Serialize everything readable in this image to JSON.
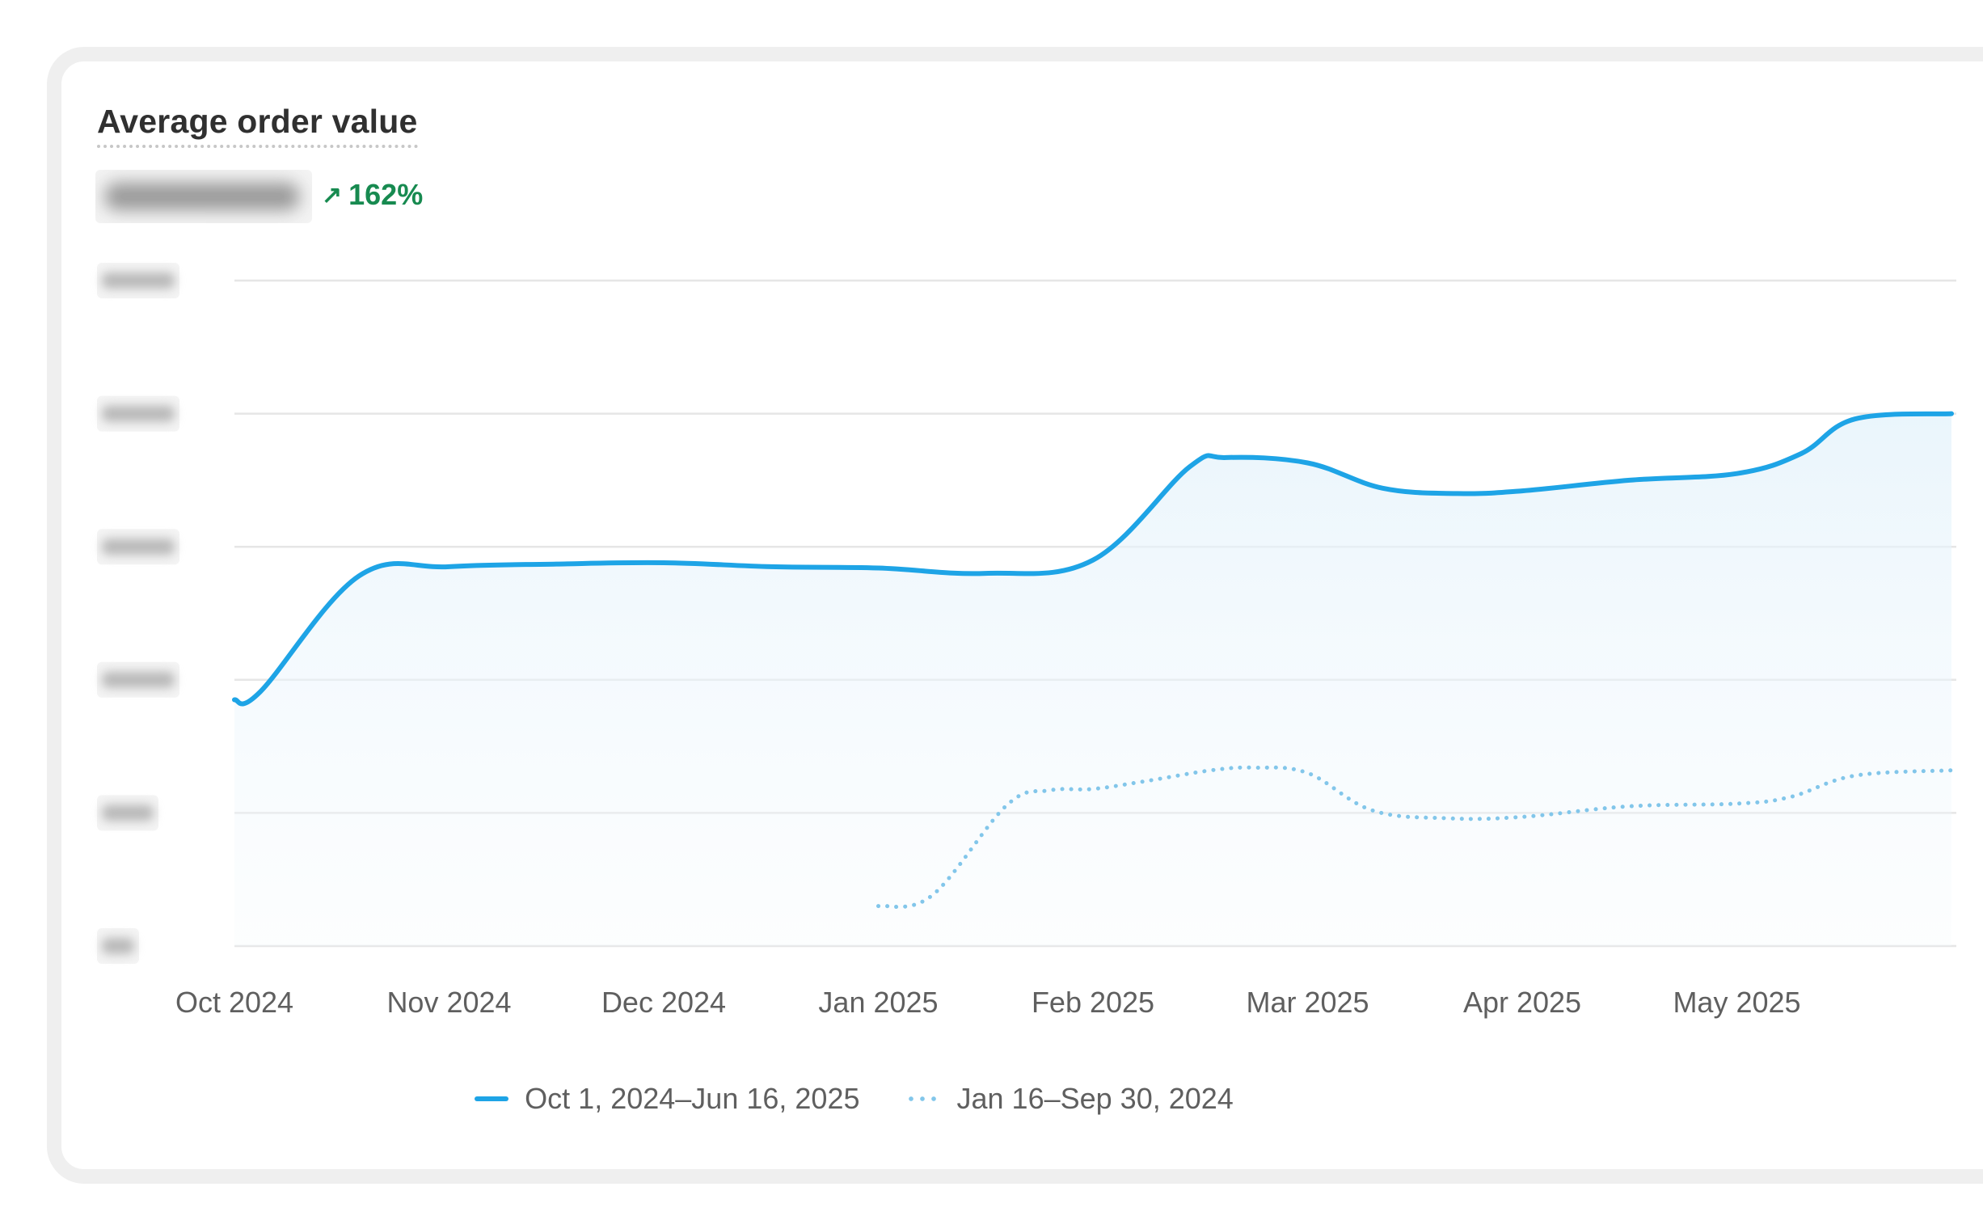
{
  "card": {
    "title": "Average order value",
    "delta_text": "162%",
    "delta_icon": "arrow-up-right-icon",
    "delta_color": "#178a50"
  },
  "chart_data": {
    "type": "area",
    "title": "Average order value",
    "xlabel": "",
    "ylabel": "",
    "x_tick_labels": [
      "Oct 2024",
      "Nov 2024",
      "Dec 2024",
      "Jan 2025",
      "Feb 2025",
      "Mar 2025",
      "Apr 2025",
      "May 2025"
    ],
    "y_tick_count": 6,
    "y_tick_labels_obscured": true,
    "ylim": [
      0,
      5
    ],
    "grid": true,
    "legend_position": "bottom",
    "series": [
      {
        "name": "Oct 1, 2024–Jun 16, 2025",
        "style": "solid-with-fill",
        "color": "#1ea4e6",
        "x": [
          0,
          0.12,
          0.58,
          1.0,
          1.5,
          2.0,
          2.5,
          3.0,
          3.5,
          4.0,
          4.45,
          4.62,
          5.0,
          5.35,
          5.7,
          6.0,
          6.5,
          7.0,
          7.3,
          7.55,
          8.0
        ],
        "y": [
          1.85,
          1.91,
          2.78,
          2.85,
          2.87,
          2.88,
          2.85,
          2.84,
          2.8,
          2.9,
          3.6,
          3.67,
          3.63,
          3.44,
          3.4,
          3.42,
          3.5,
          3.55,
          3.7,
          3.96,
          4.0
        ]
      },
      {
        "name": "Jan 16–Sep 30, 2024",
        "style": "dotted",
        "color": "#82c6ea",
        "x": [
          3.0,
          3.25,
          3.6,
          3.8,
          4.0,
          4.25,
          4.55,
          4.75,
          5.0,
          5.3,
          5.65,
          6.0,
          6.5,
          7.0,
          7.25,
          7.55,
          8.0
        ],
        "y": [
          0.3,
          0.38,
          1.06,
          1.17,
          1.18,
          1.24,
          1.32,
          1.34,
          1.3,
          1.02,
          0.96,
          0.97,
          1.05,
          1.07,
          1.12,
          1.28,
          1.32
        ]
      }
    ]
  }
}
